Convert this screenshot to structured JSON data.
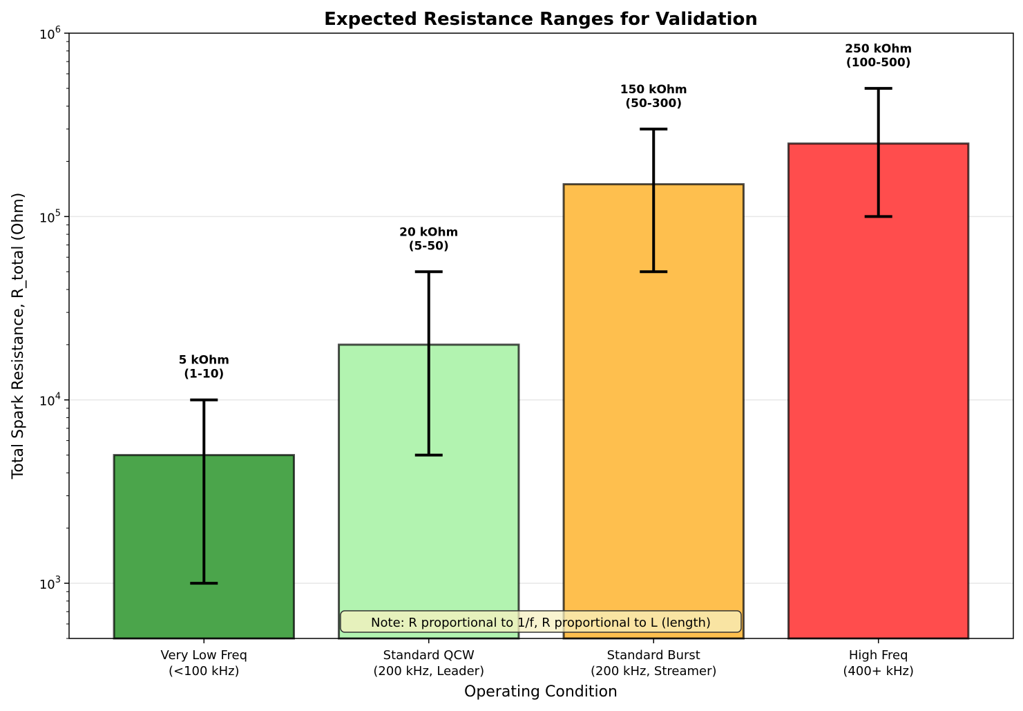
{
  "chart_data": {
    "type": "bar",
    "title": "Expected Resistance Ranges for Validation",
    "xlabel": "Operating Condition",
    "ylabel": "Total Spark Resistance, R_total (Ohm)",
    "yscale": "log",
    "ylim": [
      500,
      1000000
    ],
    "grid": "y-major",
    "yticks": [
      {
        "value": 1000,
        "base": "10",
        "exp": "3"
      },
      {
        "value": 10000,
        "base": "10",
        "exp": "4"
      },
      {
        "value": 100000,
        "base": "10",
        "exp": "5"
      },
      {
        "value": 1000000,
        "base": "10",
        "exp": "6"
      }
    ],
    "categories": [
      [
        "Very Low Freq",
        "(<100 kHz)"
      ],
      [
        "Standard QCW",
        "(200 kHz, Leader)"
      ],
      [
        "Standard Burst",
        "(200 kHz, Streamer)"
      ],
      [
        "High Freq",
        "(400+ kHz)"
      ]
    ],
    "values": [
      5000,
      20000,
      150000,
      250000
    ],
    "ranges": [
      [
        1000,
        10000
      ],
      [
        5000,
        50000
      ],
      [
        50000,
        300000
      ],
      [
        100000,
        500000
      ]
    ],
    "labels": [
      [
        "5 kOhm",
        "(1-10)"
      ],
      [
        "20 kOhm",
        "(5-50)"
      ],
      [
        "150 kOhm",
        "(50-300)"
      ],
      [
        "250 kOhm",
        "(100-500)"
      ]
    ],
    "colors": [
      "#4ba54b",
      "#b2f3b0",
      "#febf4e",
      "#ff4d4d"
    ],
    "annotation": "Note: R proportional to 1/f, R proportional to L (length)"
  }
}
